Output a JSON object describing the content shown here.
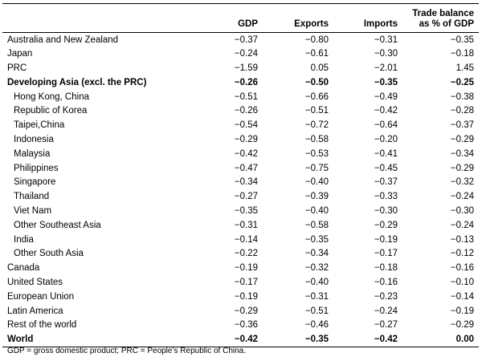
{
  "table": {
    "headers": {
      "region": "",
      "gdp": "GDP",
      "exports": "Exports",
      "imports": "Imports",
      "trade_balance_line1": "Trade balance",
      "trade_balance_line2": "as % of GDP"
    },
    "rows": [
      {
        "label": "Australia and New Zealand",
        "gdp": "−0.37",
        "exports": "−0.80",
        "imports": "−0.31",
        "tb": "−0.35",
        "bold": false,
        "indent": false
      },
      {
        "label": "Japan",
        "gdp": "−0.24",
        "exports": "−0.61",
        "imports": "−0.30",
        "tb": "−0.18",
        "bold": false,
        "indent": false
      },
      {
        "label": "PRC",
        "gdp": "−1.59",
        "exports": "0.05",
        "imports": "−2.01",
        "tb": "1.45",
        "bold": false,
        "indent": false
      },
      {
        "label": "Developing Asia (excl. the PRC)",
        "gdp": "−0.26",
        "exports": "−0.50",
        "imports": "−0.35",
        "tb": "−0.25",
        "bold": true,
        "indent": false
      },
      {
        "label": "Hong Kong, China",
        "gdp": "−0.51",
        "exports": "−0.66",
        "imports": "−0.49",
        "tb": "−0.38",
        "bold": false,
        "indent": true
      },
      {
        "label": "Republic of Korea",
        "gdp": "−0.26",
        "exports": "−0.51",
        "imports": "−0.42",
        "tb": "−0.28",
        "bold": false,
        "indent": true
      },
      {
        "label": "Taipei,China",
        "gdp": "−0.54",
        "exports": "−0.72",
        "imports": "−0.64",
        "tb": "−0.37",
        "bold": false,
        "indent": true
      },
      {
        "label": "Indonesia",
        "gdp": "−0.29",
        "exports": "−0.58",
        "imports": "−0.20",
        "tb": "−0.29",
        "bold": false,
        "indent": true
      },
      {
        "label": "Malaysia",
        "gdp": "−0.42",
        "exports": "−0.53",
        "imports": "−0.41",
        "tb": "−0.34",
        "bold": false,
        "indent": true
      },
      {
        "label": "Philippines",
        "gdp": "−0.47",
        "exports": "−0.75",
        "imports": "−0.45",
        "tb": "−0.29",
        "bold": false,
        "indent": true
      },
      {
        "label": "Singapore",
        "gdp": "−0.34",
        "exports": "−0.40",
        "imports": "−0.37",
        "tb": "−0.32",
        "bold": false,
        "indent": true
      },
      {
        "label": "Thailand",
        "gdp": "−0.27",
        "exports": "−0.39",
        "imports": "−0.33",
        "tb": "−0.24",
        "bold": false,
        "indent": true
      },
      {
        "label": "Viet Nam",
        "gdp": "−0.35",
        "exports": "−0.40",
        "imports": "−0.30",
        "tb": "−0.30",
        "bold": false,
        "indent": true
      },
      {
        "label": "Other Southeast Asia",
        "gdp": "−0.31",
        "exports": "−0.58",
        "imports": "−0.29",
        "tb": "−0.24",
        "bold": false,
        "indent": true
      },
      {
        "label": "India",
        "gdp": "−0.14",
        "exports": "−0.35",
        "imports": "−0.19",
        "tb": "−0.13",
        "bold": false,
        "indent": true
      },
      {
        "label": "Other South Asia",
        "gdp": "−0.22",
        "exports": "−0.34",
        "imports": "−0.17",
        "tb": "−0.12",
        "bold": false,
        "indent": true
      },
      {
        "label": "Canada",
        "gdp": "−0.19",
        "exports": "−0.32",
        "imports": "−0.18",
        "tb": "−0.16",
        "bold": false,
        "indent": false
      },
      {
        "label": "United States",
        "gdp": "−0.17",
        "exports": "−0.40",
        "imports": "−0.16",
        "tb": "−0.10",
        "bold": false,
        "indent": false
      },
      {
        "label": "European Union",
        "gdp": "−0.19",
        "exports": "−0.31",
        "imports": "−0.23",
        "tb": "−0.14",
        "bold": false,
        "indent": false
      },
      {
        "label": "Latin America",
        "gdp": "−0.29",
        "exports": "−0.51",
        "imports": "−0.24",
        "tb": "−0.19",
        "bold": false,
        "indent": false
      },
      {
        "label": "Rest of the world",
        "gdp": "−0.36",
        "exports": "−0.46",
        "imports": "−0.27",
        "tb": "−0.29",
        "bold": false,
        "indent": false
      },
      {
        "label": "World",
        "gdp": "−0.42",
        "exports": "−0.35",
        "imports": "−0.42",
        "tb": "0.00",
        "bold": true,
        "indent": false
      }
    ]
  },
  "footnote": "GDP = gross domestic product; PRC = People’s Republic of China."
}
